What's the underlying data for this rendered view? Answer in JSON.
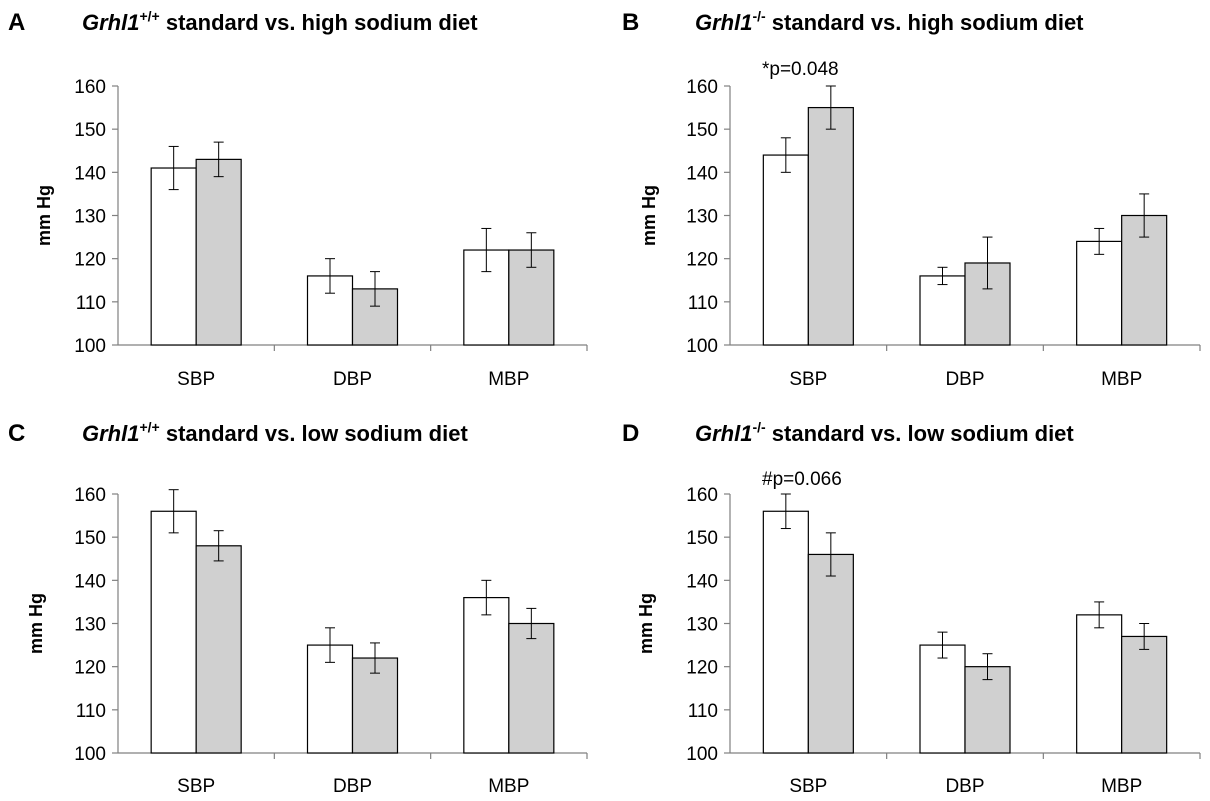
{
  "chart_data": [
    {
      "type": "bar",
      "panel_letter": "A",
      "title_gene": "Grhl1",
      "title_sup": "+/+",
      "title_rest": " standard vs. high sodium diet",
      "ylabel": "mm Hg",
      "ylim": [
        100,
        160
      ],
      "yticks": [
        100,
        110,
        120,
        130,
        140,
        150,
        160
      ],
      "categories": [
        "SBP",
        "DBP",
        "MBP"
      ],
      "series": [
        {
          "values": [
            141,
            116,
            122
          ],
          "errors": [
            5,
            4,
            5
          ],
          "color": "#ffffff"
        },
        {
          "values": [
            143,
            113,
            122
          ],
          "errors": [
            4,
            4,
            4
          ],
          "color": "#d0d0d0"
        }
      ],
      "annotation": ""
    },
    {
      "type": "bar",
      "panel_letter": "B",
      "title_gene": "Grhl1",
      "title_sup": "-/-",
      "title_rest": " standard vs. high sodium diet",
      "ylabel": "mm Hg",
      "ylim": [
        100,
        160
      ],
      "yticks": [
        100,
        110,
        120,
        130,
        140,
        150,
        160
      ],
      "categories": [
        "SBP",
        "DBP",
        "MBP"
      ],
      "series": [
        {
          "values": [
            144,
            116,
            124
          ],
          "errors": [
            4,
            2,
            3
          ],
          "color": "#ffffff"
        },
        {
          "values": [
            155,
            119,
            130
          ],
          "errors": [
            5,
            6,
            5
          ],
          "color": "#d0d0d0"
        }
      ],
      "annotation": "*p=0.048"
    },
    {
      "type": "bar",
      "panel_letter": "C",
      "title_gene": "Grhl1",
      "title_sup": "+/+",
      "title_rest": " standard vs. low sodium diet",
      "ylabel": "mm Hg",
      "ylim": [
        100,
        160
      ],
      "yticks": [
        100,
        110,
        120,
        130,
        140,
        150,
        160
      ],
      "categories": [
        "SBP",
        "DBP",
        "MBP"
      ],
      "series": [
        {
          "values": [
            156,
            125,
            136
          ],
          "errors": [
            5,
            4,
            4
          ],
          "color": "#ffffff"
        },
        {
          "values": [
            148,
            122,
            130
          ],
          "errors": [
            3.5,
            3.5,
            3.5
          ],
          "color": "#d0d0d0"
        }
      ],
      "annotation": ""
    },
    {
      "type": "bar",
      "panel_letter": "D",
      "title_gene": "Grhl1",
      "title_sup": "-/-",
      "title_rest": " standard vs. low sodium diet",
      "ylabel": "mm Hg",
      "ylim": [
        100,
        160
      ],
      "yticks": [
        100,
        110,
        120,
        130,
        140,
        150,
        160
      ],
      "categories": [
        "SBP",
        "DBP",
        "MBP"
      ],
      "series": [
        {
          "values": [
            156,
            125,
            132
          ],
          "errors": [
            4,
            3,
            3
          ],
          "color": "#ffffff"
        },
        {
          "values": [
            146,
            120,
            127
          ],
          "errors": [
            5,
            3,
            3
          ],
          "color": "#d0d0d0"
        }
      ],
      "annotation": "#p=0.066"
    }
  ]
}
